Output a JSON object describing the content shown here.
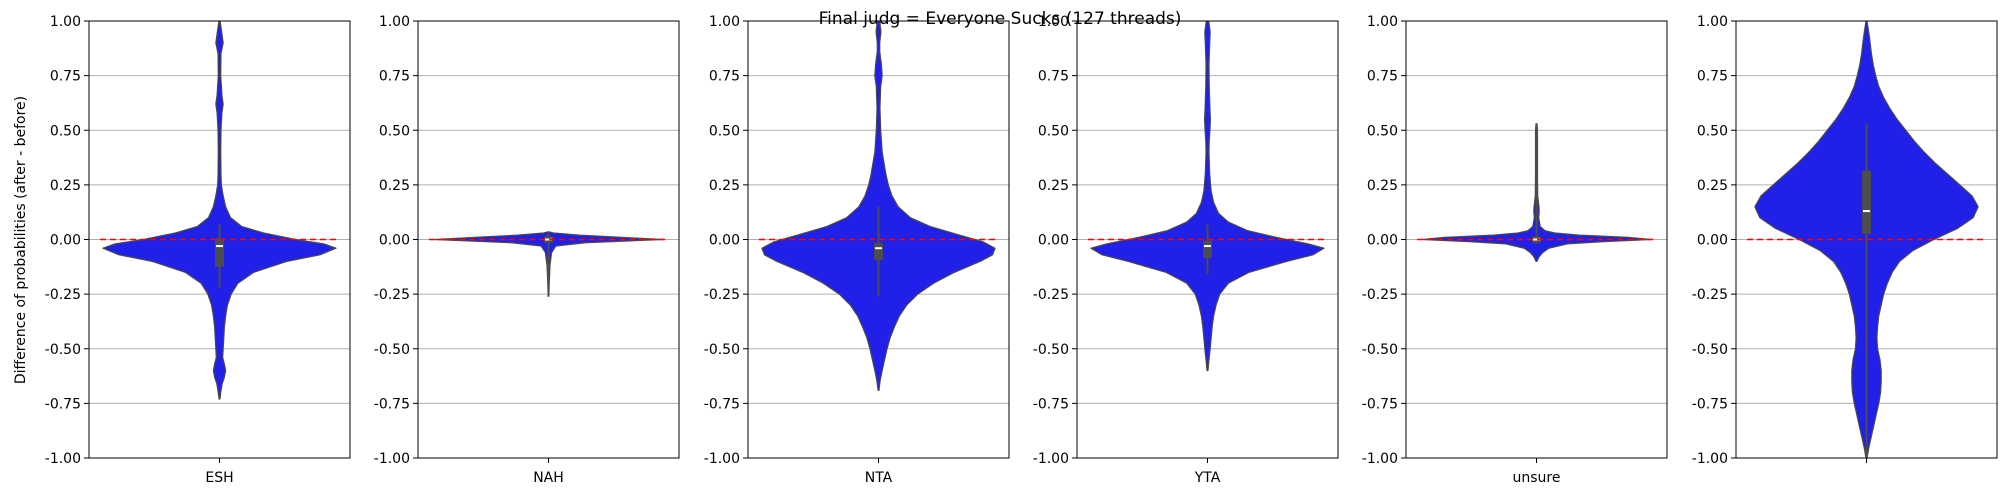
{
  "chart_data": {
    "type": "violin",
    "title": "Final judg = Everyone Sucks (127 threads)",
    "ylabel": "Difference of probabilities (after - before)",
    "ylim": [
      -1.0,
      1.0
    ],
    "yticks": [
      "-1.00",
      "-0.75",
      "-0.50",
      "-0.25",
      "0.00",
      "0.25",
      "0.50",
      "0.75",
      "1.00"
    ],
    "grid": "horizontal",
    "reference_line": {
      "y": 0.0,
      "color": "#ff0000",
      "style": "dashed"
    },
    "colors": {
      "fill": "#2020e8",
      "edge": "#4a4a4a",
      "box": "#4d4d4d",
      "median": "#ffffff"
    },
    "panels": [
      {
        "label": "ESH",
        "min": -0.22,
        "max": 0.07,
        "q1": -0.12,
        "median": -0.03,
        "q3": 0.0,
        "profile": [
          [
            -0.73,
            0.004
          ],
          [
            -0.7,
            0.01
          ],
          [
            -0.66,
            0.022
          ],
          [
            -0.63,
            0.04
          ],
          [
            -0.6,
            0.05
          ],
          [
            -0.57,
            0.04
          ],
          [
            -0.54,
            0.026
          ],
          [
            -0.5,
            0.03
          ],
          [
            -0.45,
            0.035
          ],
          [
            -0.4,
            0.04
          ],
          [
            -0.35,
            0.05
          ],
          [
            -0.3,
            0.065
          ],
          [
            -0.25,
            0.095
          ],
          [
            -0.2,
            0.15
          ],
          [
            -0.15,
            0.28
          ],
          [
            -0.1,
            0.55
          ],
          [
            -0.07,
            0.82
          ],
          [
            -0.04,
            0.95
          ],
          [
            -0.02,
            0.85
          ],
          [
            0.0,
            0.62
          ],
          [
            0.03,
            0.36
          ],
          [
            0.06,
            0.18
          ],
          [
            0.1,
            0.09
          ],
          [
            0.15,
            0.05
          ],
          [
            0.2,
            0.03
          ],
          [
            0.25,
            0.015
          ],
          [
            0.3,
            0.012
          ],
          [
            0.4,
            0.01
          ],
          [
            0.5,
            0.012
          ],
          [
            0.58,
            0.02
          ],
          [
            0.62,
            0.03
          ],
          [
            0.66,
            0.02
          ],
          [
            0.75,
            0.01
          ],
          [
            0.85,
            0.012
          ],
          [
            0.9,
            0.03
          ],
          [
            0.94,
            0.02
          ],
          [
            0.98,
            0.01
          ],
          [
            1.0,
            0.004
          ]
        ]
      },
      {
        "label": "NAH",
        "min": -0.26,
        "max": 0.03,
        "q1": -0.01,
        "median": 0.0,
        "q3": 0.01,
        "profile": [
          [
            -0.26,
            0.003
          ],
          [
            -0.2,
            0.006
          ],
          [
            -0.12,
            0.012
          ],
          [
            -0.06,
            0.025
          ],
          [
            -0.03,
            0.06
          ],
          [
            -0.015,
            0.3
          ],
          [
            0.0,
            0.93
          ],
          [
            0.01,
            0.6
          ],
          [
            0.02,
            0.25
          ],
          [
            0.03,
            0.04
          ],
          [
            0.035,
            0.004
          ]
        ]
      },
      {
        "label": "NTA",
        "min": -0.26,
        "max": 0.15,
        "q1": -0.09,
        "median": -0.04,
        "q3": -0.02,
        "profile": [
          [
            -0.69,
            0.004
          ],
          [
            -0.65,
            0.012
          ],
          [
            -0.6,
            0.03
          ],
          [
            -0.55,
            0.05
          ],
          [
            -0.5,
            0.07
          ],
          [
            -0.45,
            0.095
          ],
          [
            -0.4,
            0.13
          ],
          [
            -0.35,
            0.17
          ],
          [
            -0.3,
            0.23
          ],
          [
            -0.25,
            0.32
          ],
          [
            -0.2,
            0.45
          ],
          [
            -0.15,
            0.62
          ],
          [
            -0.1,
            0.83
          ],
          [
            -0.07,
            0.93
          ],
          [
            -0.04,
            0.95
          ],
          [
            -0.01,
            0.85
          ],
          [
            0.02,
            0.66
          ],
          [
            0.06,
            0.42
          ],
          [
            0.1,
            0.26
          ],
          [
            0.15,
            0.16
          ],
          [
            0.2,
            0.11
          ],
          [
            0.25,
            0.08
          ],
          [
            0.3,
            0.06
          ],
          [
            0.35,
            0.045
          ],
          [
            0.4,
            0.03
          ],
          [
            0.5,
            0.018
          ],
          [
            0.6,
            0.012
          ],
          [
            0.65,
            0.015
          ],
          [
            0.7,
            0.018
          ],
          [
            0.75,
            0.03
          ],
          [
            0.8,
            0.024
          ],
          [
            0.86,
            0.01
          ],
          [
            0.9,
            0.01
          ],
          [
            0.95,
            0.02
          ],
          [
            1.0,
            0.01
          ]
        ]
      },
      {
        "label": "YTA",
        "min": -0.16,
        "max": 0.07,
        "q1": -0.08,
        "median": -0.03,
        "q3": -0.01,
        "profile": [
          [
            -0.6,
            0.004
          ],
          [
            -0.55,
            0.012
          ],
          [
            -0.5,
            0.022
          ],
          [
            -0.45,
            0.03
          ],
          [
            -0.4,
            0.038
          ],
          [
            -0.35,
            0.05
          ],
          [
            -0.3,
            0.07
          ],
          [
            -0.25,
            0.1
          ],
          [
            -0.2,
            0.17
          ],
          [
            -0.15,
            0.34
          ],
          [
            -0.1,
            0.65
          ],
          [
            -0.07,
            0.86
          ],
          [
            -0.04,
            0.95
          ],
          [
            -0.02,
            0.82
          ],
          [
            0.01,
            0.56
          ],
          [
            0.04,
            0.33
          ],
          [
            0.08,
            0.17
          ],
          [
            0.12,
            0.09
          ],
          [
            0.17,
            0.05
          ],
          [
            0.22,
            0.03
          ],
          [
            0.3,
            0.018
          ],
          [
            0.4,
            0.012
          ],
          [
            0.45,
            0.014
          ],
          [
            0.5,
            0.02
          ],
          [
            0.55,
            0.024
          ],
          [
            0.6,
            0.02
          ],
          [
            0.7,
            0.014
          ],
          [
            0.8,
            0.012
          ],
          [
            0.9,
            0.018
          ],
          [
            0.95,
            0.022
          ],
          [
            1.0,
            0.01
          ]
        ]
      },
      {
        "label": "unsure",
        "min": -0.02,
        "max": 0.53,
        "q1": -0.01,
        "median": 0.0,
        "q3": 0.01,
        "profile": [
          [
            -0.1,
            0.004
          ],
          [
            -0.08,
            0.02
          ],
          [
            -0.06,
            0.05
          ],
          [
            -0.04,
            0.1
          ],
          [
            -0.02,
            0.25
          ],
          [
            -0.01,
            0.55
          ],
          [
            0.0,
            0.93
          ],
          [
            0.01,
            0.75
          ],
          [
            0.02,
            0.35
          ],
          [
            0.03,
            0.15
          ],
          [
            0.04,
            0.07
          ],
          [
            0.06,
            0.03
          ],
          [
            0.1,
            0.018
          ],
          [
            0.13,
            0.022
          ],
          [
            0.15,
            0.02
          ],
          [
            0.2,
            0.01
          ],
          [
            0.3,
            0.008
          ],
          [
            0.4,
            0.008
          ],
          [
            0.5,
            0.008
          ],
          [
            0.53,
            0.004
          ]
        ]
      },
      {
        "label": "",
        "min": -1.0,
        "max": 0.53,
        "q1": 0.03,
        "median": 0.13,
        "q3": 0.31,
        "profile": [
          [
            -1.0,
            0.004
          ],
          [
            -0.95,
            0.02
          ],
          [
            -0.9,
            0.04
          ],
          [
            -0.85,
            0.06
          ],
          [
            -0.8,
            0.08
          ],
          [
            -0.75,
            0.1
          ],
          [
            -0.7,
            0.115
          ],
          [
            -0.65,
            0.12
          ],
          [
            -0.6,
            0.12
          ],
          [
            -0.55,
            0.11
          ],
          [
            -0.5,
            0.09
          ],
          [
            -0.45,
            0.085
          ],
          [
            -0.4,
            0.09
          ],
          [
            -0.35,
            0.1
          ],
          [
            -0.3,
            0.12
          ],
          [
            -0.25,
            0.14
          ],
          [
            -0.2,
            0.17
          ],
          [
            -0.15,
            0.21
          ],
          [
            -0.1,
            0.27
          ],
          [
            -0.05,
            0.38
          ],
          [
            0.0,
            0.55
          ],
          [
            0.05,
            0.74
          ],
          [
            0.1,
            0.87
          ],
          [
            0.15,
            0.91
          ],
          [
            0.2,
            0.86
          ],
          [
            0.25,
            0.76
          ],
          [
            0.3,
            0.66
          ],
          [
            0.35,
            0.56
          ],
          [
            0.4,
            0.47
          ],
          [
            0.45,
            0.39
          ],
          [
            0.5,
            0.32
          ],
          [
            0.55,
            0.25
          ],
          [
            0.6,
            0.19
          ],
          [
            0.65,
            0.14
          ],
          [
            0.7,
            0.1
          ],
          [
            0.75,
            0.075
          ],
          [
            0.8,
            0.055
          ],
          [
            0.85,
            0.04
          ],
          [
            0.9,
            0.03
          ],
          [
            0.95,
            0.018
          ],
          [
            1.0,
            0.004
          ]
        ]
      }
    ]
  }
}
